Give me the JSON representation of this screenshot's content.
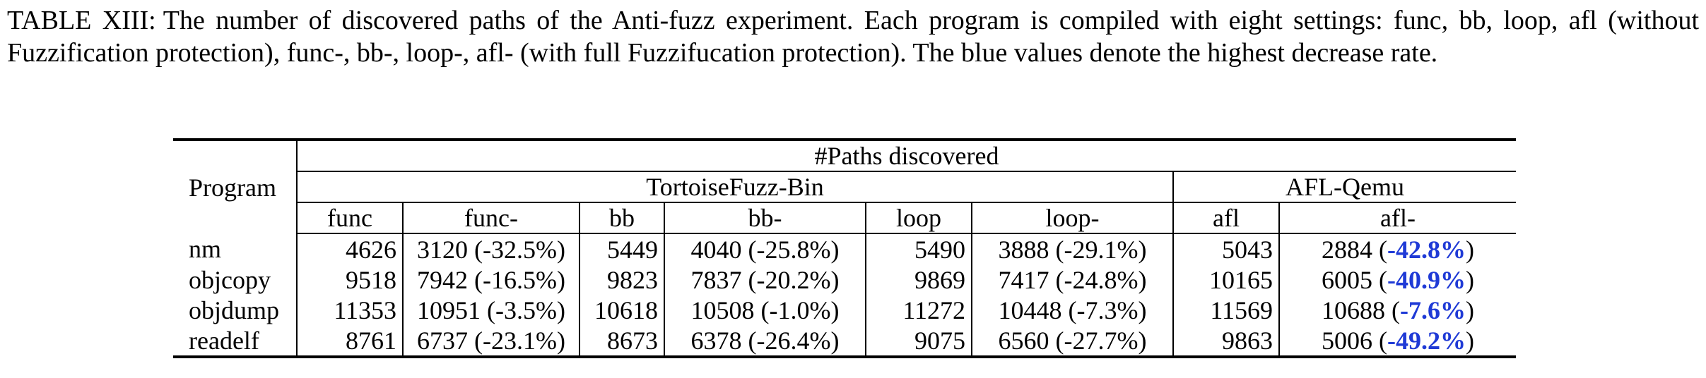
{
  "caption": {
    "label": "TABLE XIII:",
    "text": "The number of discovered paths of the Anti-fuzz experiment. Each program is compiled with eight settings: func, bb, loop, afl (without Fuzzification protection), func-, bb-, loop-, afl- (with full Fuzzifucation protection). The blue values denote the highest decrease rate."
  },
  "table": {
    "program_header": "Program",
    "group_header": "#Paths discovered",
    "tools": [
      "TortoiseFuzz-Bin",
      "AFL-Qemu"
    ],
    "columns": [
      "func",
      "func-",
      "bb",
      "bb-",
      "loop",
      "loop-",
      "afl",
      "afl-"
    ],
    "rows": [
      {
        "program": "nm",
        "func": "4626",
        "func_minus": "3120 (-32.5%)",
        "bb": "5449",
        "bb_minus": "4040 (-25.8%)",
        "loop": "5490",
        "loop_minus": "3888 (-29.1%)",
        "afl": "5043",
        "afl_minus_value": "2884",
        "afl_minus_rate": "-42.8%"
      },
      {
        "program": "objcopy",
        "func": "9518",
        "func_minus": "7942 (-16.5%)",
        "bb": "9823",
        "bb_minus": "7837 (-20.2%)",
        "loop": "9869",
        "loop_minus": "7417 (-24.8%)",
        "afl": "10165",
        "afl_minus_value": "6005",
        "afl_minus_rate": "-40.9%"
      },
      {
        "program": "objdump",
        "func": "11353",
        "func_minus": "10951 (-3.5%)",
        "bb": "10618",
        "bb_minus": "10508 (-1.0%)",
        "loop": "11272",
        "loop_minus": "10448 (-7.3%)",
        "afl": "11569",
        "afl_minus_value": "10688",
        "afl_minus_rate": "-7.6%"
      },
      {
        "program": "readelf",
        "func": "8761",
        "func_minus": "6737 (-23.1%)",
        "bb": "8673",
        "bb_minus": "6378 (-26.4%)",
        "loop": "9075",
        "loop_minus": "6560 (-27.7%)",
        "afl": "9863",
        "afl_minus_value": "5006",
        "afl_minus_rate": "-49.2%"
      }
    ],
    "highlight_color": "#1f3ad6"
  }
}
